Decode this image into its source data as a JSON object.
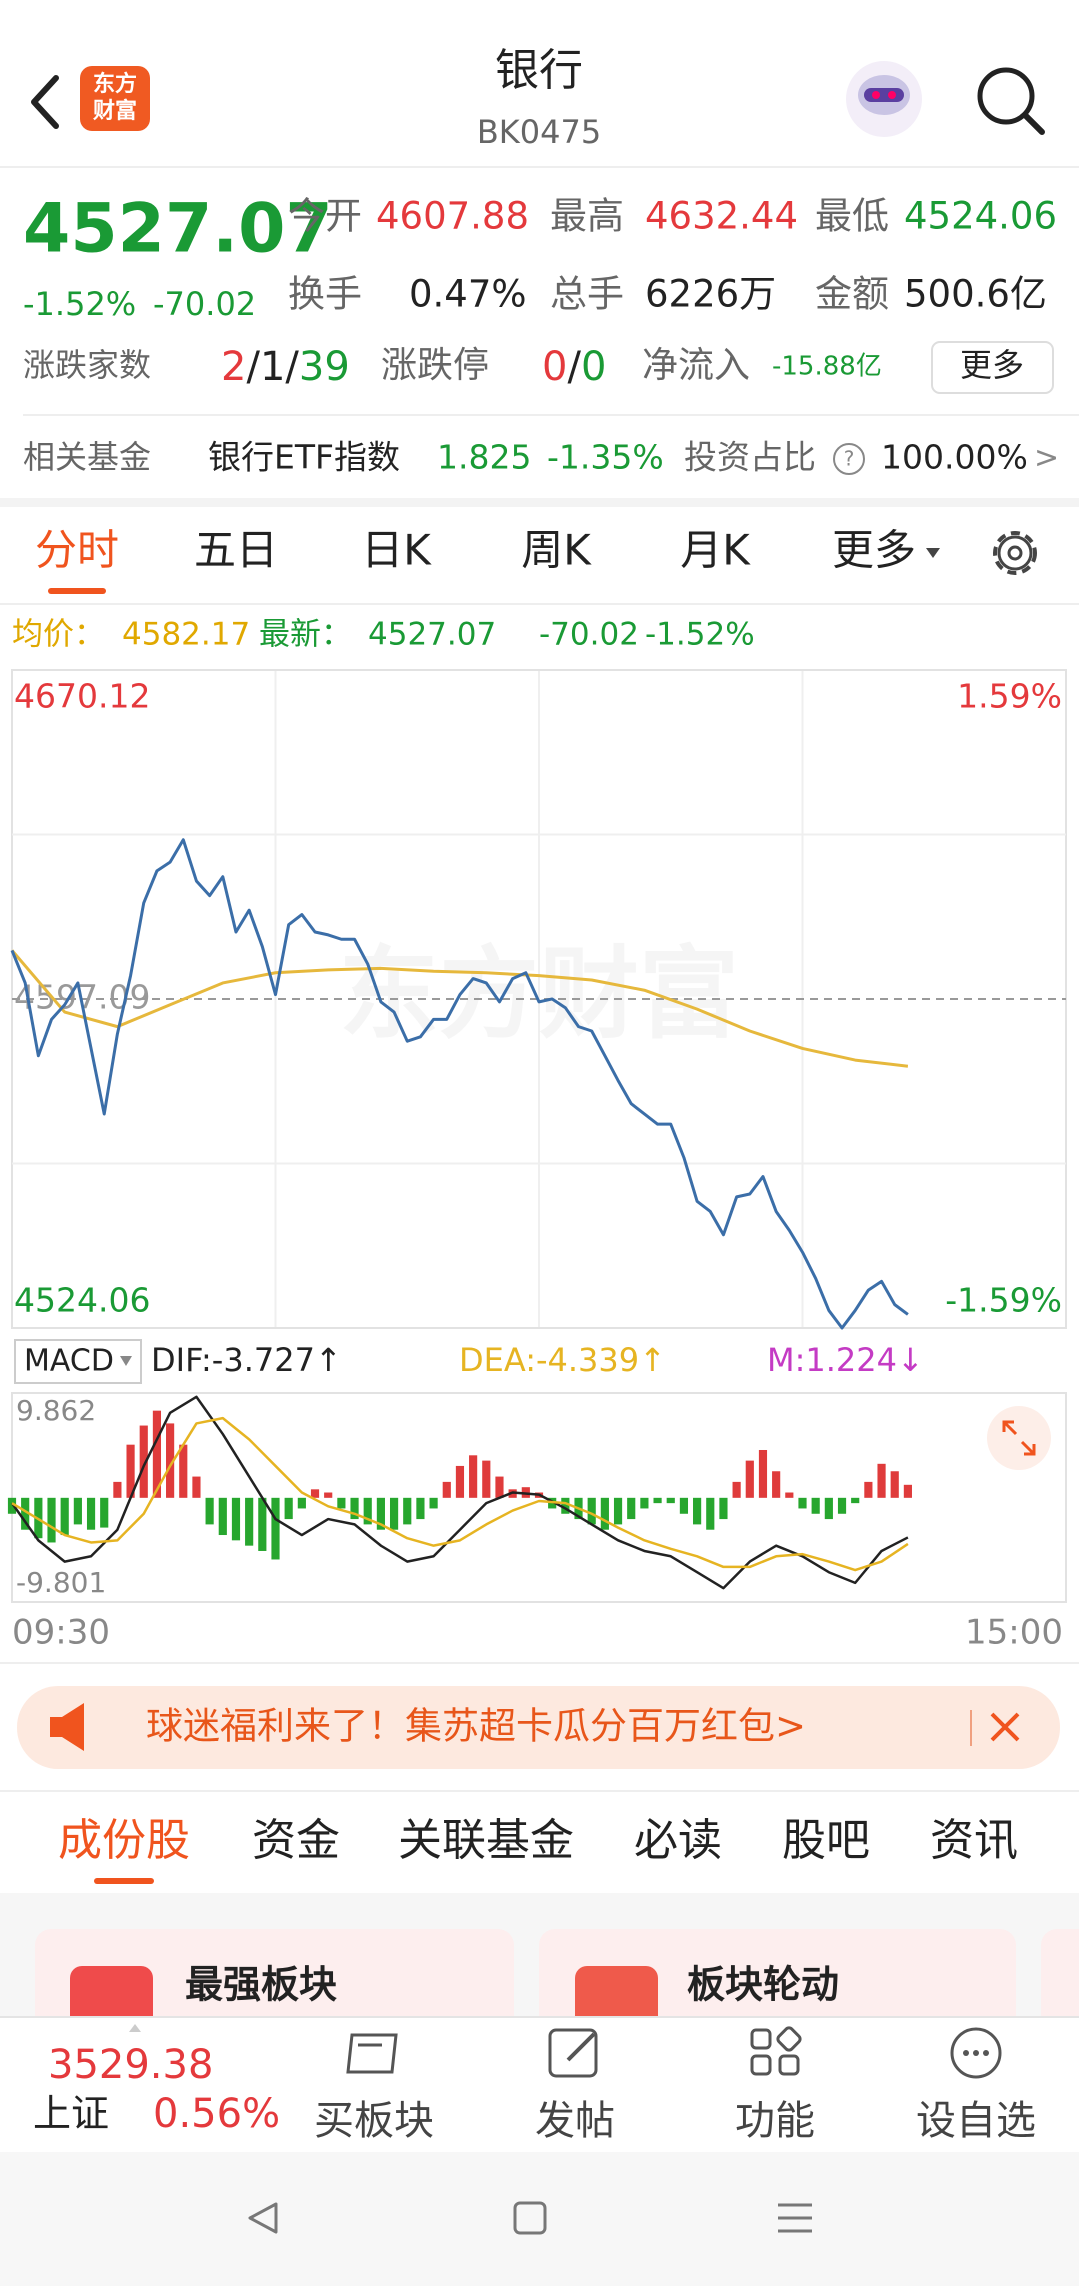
{
  "header": {
    "title": "银行",
    "code": "BK0475",
    "logo": [
      "东方",
      "财富"
    ]
  },
  "quote": {
    "price": "4527.07",
    "change_pct": "-1.52%",
    "change": "-70.02",
    "stats": [
      {
        "label": "今开",
        "value": "4607.88"
      },
      {
        "label": "最高",
        "value": "4632.44"
      },
      {
        "label": "最低",
        "value": "4524.06"
      },
      {
        "label": "换手",
        "value": "0.47%"
      },
      {
        "label": "总手",
        "value": "6226万"
      },
      {
        "label": "金额",
        "value": "500.6亿"
      }
    ],
    "breadth": {
      "label": "涨跌家数",
      "parts": [
        "2",
        "/",
        "1",
        "/",
        "39"
      ]
    },
    "limit": {
      "label": "涨跌停",
      "parts": [
        "0",
        "/",
        "0"
      ]
    },
    "net_inflow": {
      "label": "净流入",
      "value": "-15.88亿"
    },
    "more": "更多"
  },
  "fund": {
    "label": "相关基金",
    "name": "银行ETF指数",
    "price": "1.825",
    "change": "-1.35%",
    "ratio_label": "投资占比",
    "help": "?",
    "ratio": "100.00%",
    "arrow": ">"
  },
  "tabs": [
    "分时",
    "五日",
    "日K",
    "周K",
    "月K",
    "更多"
  ],
  "info": {
    "avg": "4582.17",
    "latest": "4527.07",
    "change": "-70.02",
    "pct": "-1.52%"
  },
  "watermark": "东方财富",
  "chart_data": [
    {
      "type": "line",
      "xlim": [
        0,
        240
      ],
      "ylim": [
        4524.06,
        4670.12
      ],
      "yticks": [
        4670.12,
        4597.09,
        4524.06
      ],
      "y2lim": [
        -1.59,
        1.59
      ],
      "y2ticks": [
        {
          "value": 1.59,
          "label": "1.59%"
        },
        {
          "value": -1.59,
          "label": "-1.59%"
        }
      ],
      "series": [
        {
          "name": "最新：",
          "color": "#3b6ea8",
          "x": [
            0,
            3,
            6,
            9,
            12,
            15,
            18,
            21,
            24,
            27,
            30,
            33,
            36,
            39,
            42,
            45,
            48,
            51,
            54,
            57,
            60,
            63,
            66,
            69,
            72,
            75,
            78,
            81,
            84,
            87,
            90,
            93,
            96,
            99,
            102,
            105,
            108,
            111,
            114,
            117,
            120,
            123,
            126,
            129,
            132,
            135,
            138,
            141,
            144,
            147,
            150,
            153,
            156,
            159,
            162,
            165,
            168,
            171,
            174,
            177,
            180,
            183,
            186,
            189,
            192,
            195,
            198,
            201,
            204
          ],
          "values": [
            4607.88,
            4600.65,
            4584.5,
            4592.58,
            4595.81,
            4600.65,
            4586.11,
            4571.57,
            4589.34,
            4602.27,
            4618.42,
            4625.53,
            4627.47,
            4632.44,
            4623.27,
            4620.04,
            4624.24,
            4611.96,
            4616.81,
            4608.73,
            4598.07,
            4613.58,
            4615.84,
            4611.96,
            4611.32,
            4610.35,
            4610.35,
            4604.85,
            4596.45,
            4594.19,
            4587.73,
            4588.7,
            4592.58,
            4592.58,
            4598.07,
            4601.62,
            4600.65,
            4596.45,
            4601.62,
            4602.92,
            4596.45,
            4597.1,
            4595.16,
            4590.96,
            4589.99,
            4584.5,
            4579.01,
            4573.84,
            4571.57,
            4569.31,
            4569.31,
            4561.88,
            4552.19,
            4549.93,
            4544.76,
            4553.16,
            4553.8,
            4557.68,
            4549.93,
            4545.73,
            4540.88,
            4535.06,
            4527.96,
            4524.06,
            4527.96,
            4532.48,
            4534.42,
            4529.25,
            4527.07
          ]
        },
        {
          "name": "均价：",
          "color": "#e6b83c",
          "x": [
            0,
            12,
            24,
            36,
            48,
            60,
            72,
            84,
            96,
            108,
            120,
            132,
            144,
            156,
            168,
            180,
            192,
            204
          ],
          "values": [
            4607.88,
            4594.19,
            4590.96,
            4595.81,
            4600.65,
            4602.92,
            4603.56,
            4603.88,
            4603.24,
            4602.92,
            4602.27,
            4601.3,
            4599.04,
            4594.84,
            4589.99,
            4586.11,
            4583.53,
            4582.17
          ]
        }
      ]
    },
    {
      "type": "macd",
      "indicator": "MACD",
      "xlim": [
        0,
        240
      ],
      "xticks": [
        {
          "value": 0,
          "label": "09:30"
        },
        {
          "value": 240,
          "label": "15:00"
        }
      ],
      "ylim": [
        -9.801,
        9.862
      ],
      "yticks": [
        9.862,
        -9.801
      ],
      "series": [
        {
          "name": "DIF:-3.727↑",
          "type": "line",
          "color": "#222222",
          "x": [
            0,
            6,
            12,
            18,
            24,
            30,
            36,
            42,
            48,
            54,
            60,
            66,
            72,
            78,
            84,
            90,
            96,
            102,
            108,
            114,
            120,
            126,
            132,
            138,
            144,
            150,
            156,
            162,
            168,
            174,
            180,
            186,
            192,
            198,
            204
          ],
          "values": [
            -0.5,
            -4,
            -6,
            -5.5,
            -3,
            3,
            8,
            9.5,
            6,
            2,
            -2,
            -3.5,
            -2,
            -2.5,
            -4.5,
            -6,
            -5.5,
            -3,
            -0.5,
            0.5,
            0.3,
            -1,
            -2.5,
            -4,
            -5,
            -5.5,
            -7,
            -8.5,
            -6,
            -4.5,
            -5.5,
            -7,
            -8,
            -5,
            -3.727
          ]
        },
        {
          "name": "DEA:-4.339↑",
          "type": "line",
          "color": "#e6b422",
          "x": [
            0,
            6,
            12,
            18,
            24,
            30,
            36,
            42,
            48,
            54,
            60,
            66,
            72,
            78,
            84,
            90,
            96,
            102,
            108,
            114,
            120,
            126,
            132,
            138,
            144,
            150,
            156,
            162,
            168,
            174,
            180,
            186,
            192,
            198,
            204
          ],
          "values": [
            -0.5,
            -2,
            -3.5,
            -4.2,
            -4,
            -1.5,
            3,
            7,
            7.5,
            5.5,
            3,
            0.5,
            -0.8,
            -1.5,
            -2.5,
            -3.8,
            -4.5,
            -4,
            -2.5,
            -1.2,
            -0.3,
            -0.5,
            -1.5,
            -2.8,
            -4,
            -4.8,
            -5.5,
            -6.5,
            -6.5,
            -5.5,
            -5.3,
            -6,
            -6.8,
            -6,
            -4.339
          ]
        },
        {
          "name": "M:1.224↓",
          "type": "bar",
          "color": "#c43bc4",
          "up_color": "#df3b3b",
          "down_color": "#27a62e",
          "x": [
            0,
            3,
            6,
            9,
            12,
            15,
            18,
            21,
            24,
            27,
            30,
            33,
            36,
            39,
            42,
            45,
            48,
            51,
            54,
            57,
            60,
            63,
            66,
            69,
            72,
            75,
            78,
            81,
            84,
            87,
            90,
            93,
            96,
            99,
            102,
            105,
            108,
            111,
            114,
            117,
            120,
            123,
            126,
            129,
            132,
            135,
            138,
            141,
            144,
            147,
            150,
            153,
            156,
            159,
            162,
            165,
            168,
            171,
            174,
            177,
            180,
            183,
            186,
            189,
            192,
            195,
            198,
            201,
            204
          ],
          "values": [
            -1.5,
            -3,
            -3.8,
            -4.2,
            -3.5,
            -2.5,
            -3,
            -2.8,
            1.5,
            5,
            6.8,
            8.2,
            7,
            5,
            2,
            -2.5,
            -3.5,
            -4,
            -4.5,
            -5,
            -5.8,
            -2,
            -1,
            0.8,
            0.5,
            -1,
            -2,
            -2.5,
            -3,
            -3,
            -2.5,
            -2,
            -1,
            1.5,
            3,
            4,
            3.5,
            2,
            0.8,
            1,
            0.5,
            -1,
            -1.5,
            -2,
            -2.5,
            -3,
            -2.5,
            -2,
            -1,
            -0.5,
            -0.5,
            -1.5,
            -2.5,
            -3,
            -2,
            1.5,
            3.5,
            4.5,
            2.5,
            0.5,
            -1,
            -1.5,
            -2,
            -1.5,
            -0.5,
            1.5,
            3.2,
            2.5,
            1.224
          ]
        }
      ]
    }
  ],
  "banner": {
    "text": "球迷福利来了！集苏超卡瓜分百万红包>"
  },
  "sections": [
    "成份股",
    "资金",
    "关联基金",
    "必读",
    "股吧",
    "资讯"
  ],
  "cards": [
    {
      "title": "最强板块"
    },
    {
      "title": "板块轮动"
    }
  ],
  "bottom_bar": {
    "index_value": "3529.38",
    "index_name": "上证",
    "index_pct": "0.56%",
    "items": [
      "买板块",
      "发帖",
      "功能",
      "设自选"
    ]
  }
}
